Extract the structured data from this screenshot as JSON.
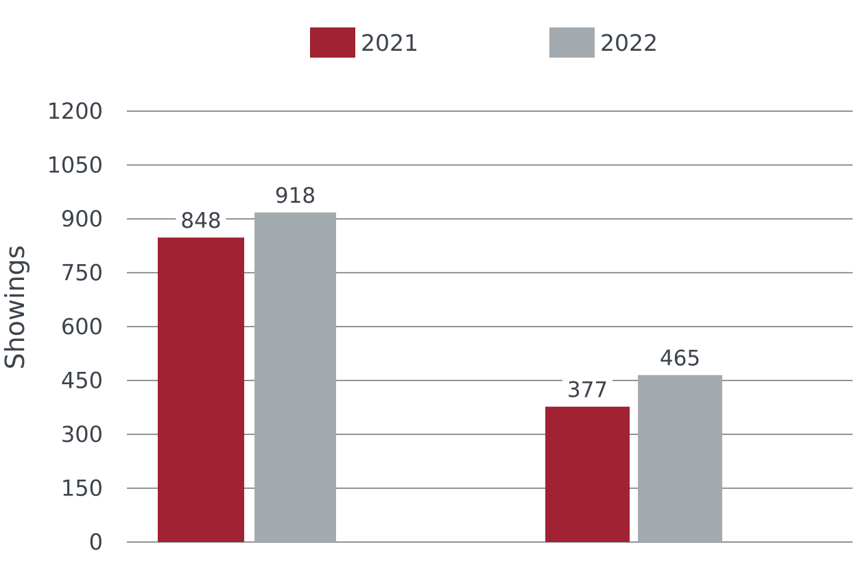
{
  "chart_data": {
    "type": "bar",
    "categories": [
      "",
      ""
    ],
    "series": [
      {
        "name": "2021",
        "values": [
          848,
          377
        ],
        "color": "#a12232"
      },
      {
        "name": "2022",
        "values": [
          918,
          465
        ],
        "color": "#a3abb1"
      }
    ],
    "data_labels": [
      [
        "848",
        "377"
      ],
      [
        "918",
        "465"
      ]
    ],
    "title": "",
    "xlabel": "",
    "ylabel": "Showings",
    "ylim": [
      0,
      1200
    ],
    "yticks": [
      0,
      150,
      300,
      450,
      600,
      750,
      900,
      1050,
      1200
    ],
    "grid": true,
    "legend_position": "top"
  }
}
